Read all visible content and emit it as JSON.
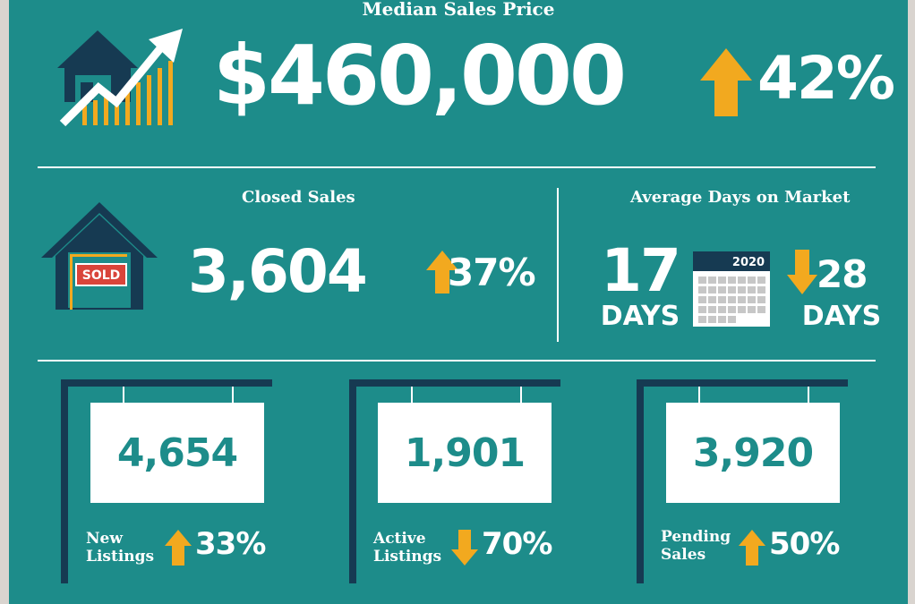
{
  "median_sales_price": {
    "title": "Median Sales Price",
    "value": "$460,000",
    "change": "42%",
    "direction": "up"
  },
  "closed_sales": {
    "title": "Closed Sales",
    "value": "3,604",
    "sign_text": "SOLD",
    "change": "37%",
    "direction": "up"
  },
  "average_days_on_market": {
    "title": "Average Days on Market",
    "value": "17",
    "value_unit": "DAYS",
    "calendar_year": "2020",
    "change": "28",
    "change_unit": "DAYS",
    "direction": "down"
  },
  "listings": [
    {
      "value": "4,654",
      "label_line1": "New",
      "label_line2": "Listings",
      "change": "33%",
      "direction": "up"
    },
    {
      "value": "1,901",
      "label_line1": "Active",
      "label_line2": "Listings",
      "change": "70%",
      "direction": "down"
    },
    {
      "value": "3,920",
      "label_line1": "Pending",
      "label_line2": "Sales",
      "change": "50%",
      "direction": "up"
    }
  ],
  "colors": {
    "background": "#1d8c8a",
    "accent_arrow": "#f2a91f",
    "navy": "#163a52",
    "text": "#ffffff",
    "sold_red": "#d9443a"
  }
}
